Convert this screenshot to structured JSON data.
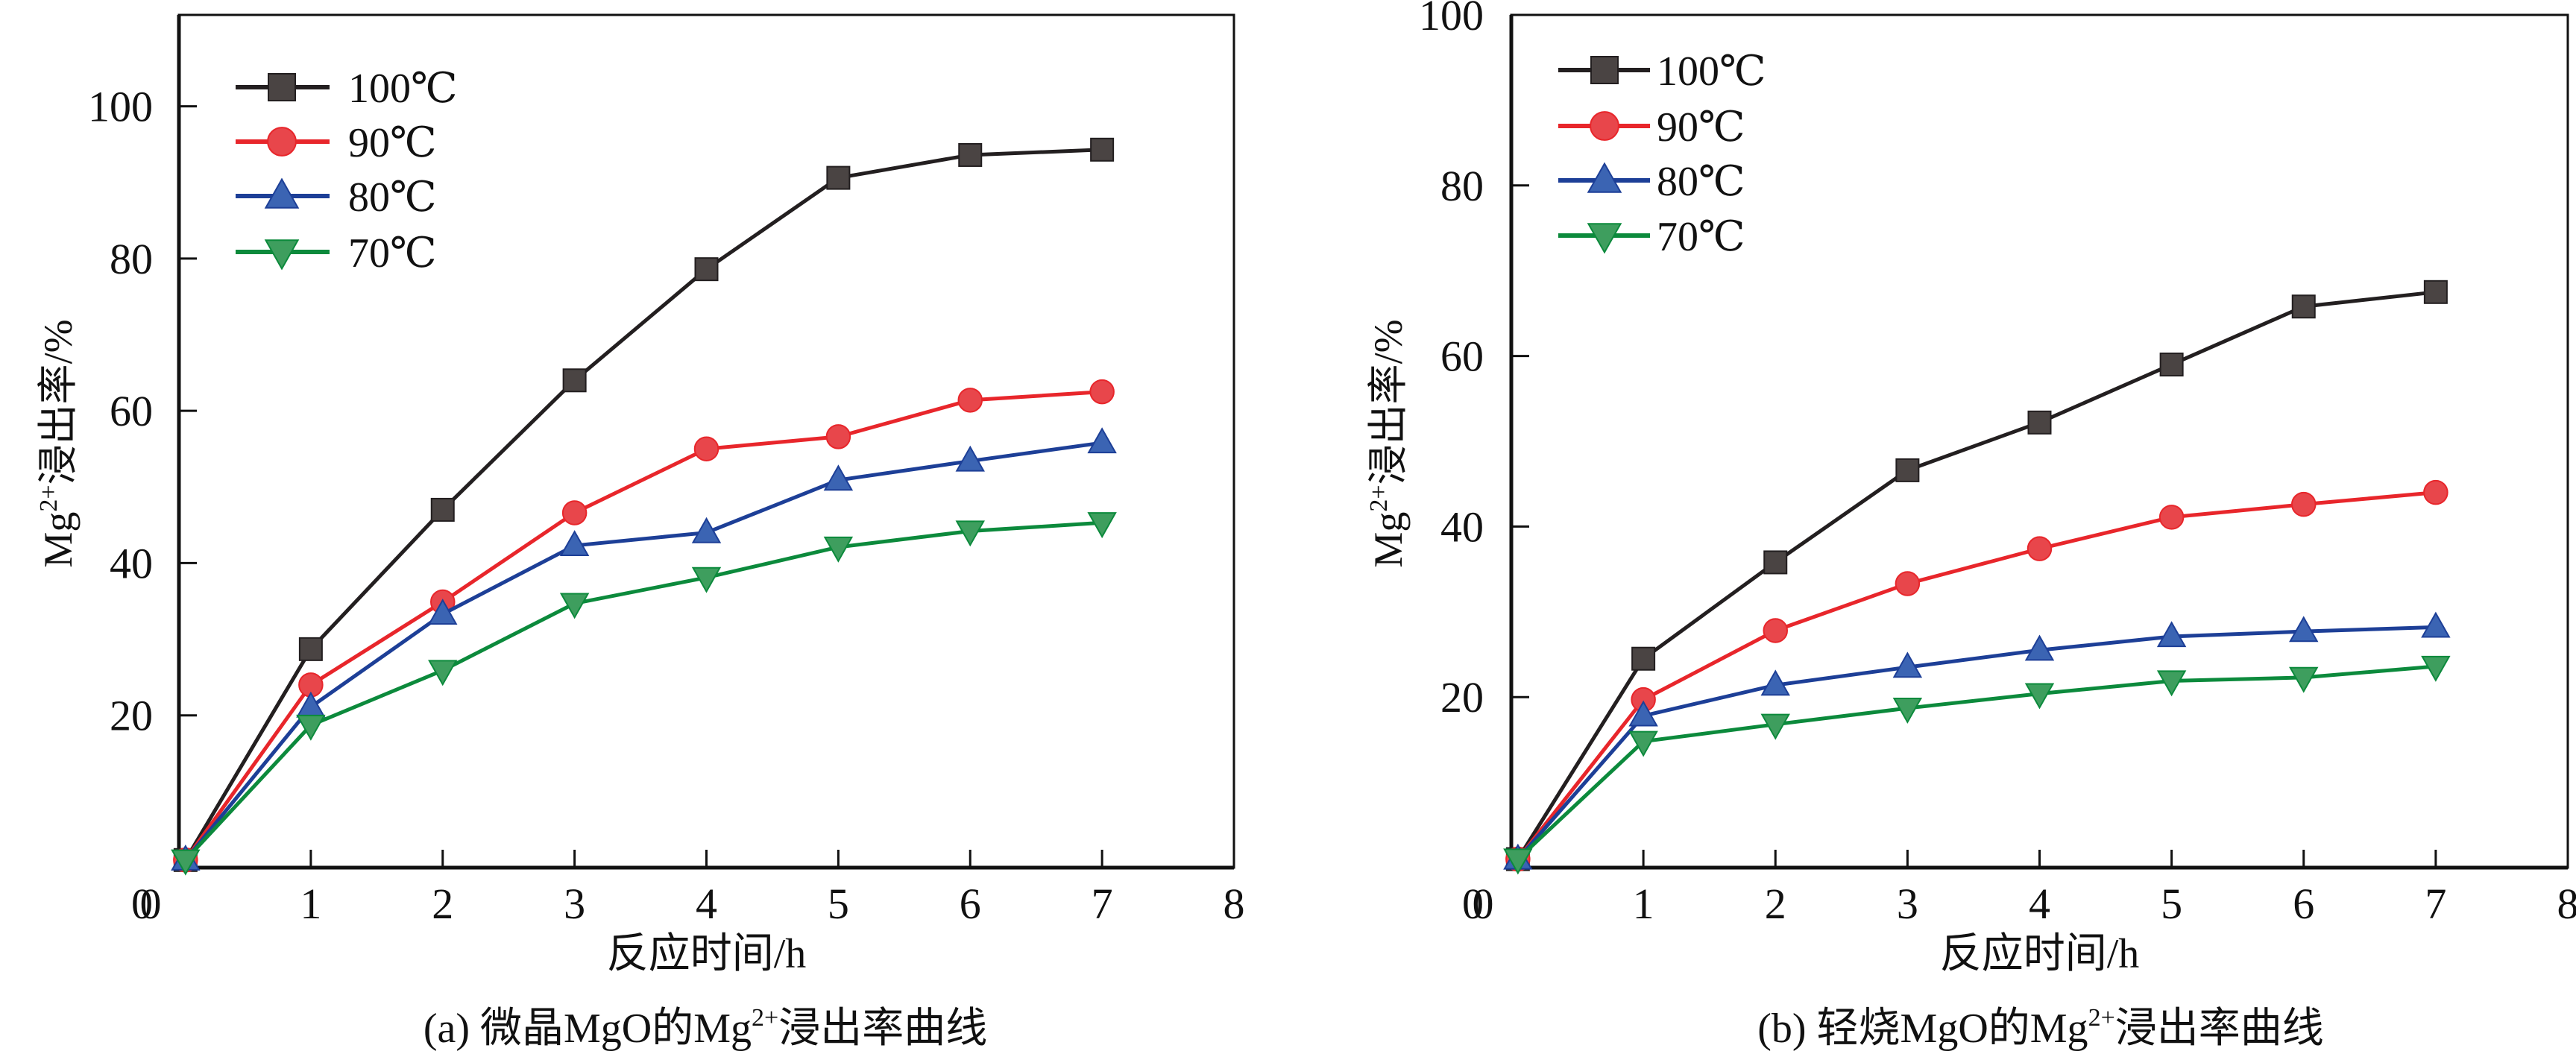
{
  "chart_data": [
    {
      "id": "a",
      "type": "line",
      "title": "",
      "caption": "(a) 微晶MgO的Mg²⁺浸出率曲线",
      "caption_parts": {
        "prefix": "(a) 微晶MgO的Mg",
        "sup": "2+",
        "suffix": "浸出率曲线"
      },
      "xlabel": "反应时间/h",
      "ylabel": "Mg²⁺浸出率/%",
      "ylabel_parts": {
        "prefix": "Mg",
        "sup": "2+",
        "suffix": "浸出率/%"
      },
      "xlim": [
        0,
        8
      ],
      "ylim": [
        0,
        112
      ],
      "xticks": [
        0,
        1,
        2,
        3,
        4,
        5,
        6,
        7,
        8
      ],
      "yticks": [
        20,
        40,
        60,
        80,
        100
      ],
      "ytick_labels_shown": [
        "0",
        "20",
        "40",
        "60",
        "80",
        "100"
      ],
      "grid": false,
      "legend_position": "top-left",
      "x": [
        0.05,
        1,
        2,
        3,
        4,
        5,
        6,
        7
      ],
      "series": [
        {
          "name": "100℃",
          "color": "#231f20",
          "fill": "#4a4443",
          "marker": "square",
          "values": [
            1,
            28.7,
            47.0,
            64.0,
            78.6,
            90.6,
            93.6,
            94.3
          ]
        },
        {
          "name": "90℃",
          "color": "#e8262b",
          "fill": "#e8464b",
          "marker": "circle",
          "values": [
            1,
            24.0,
            34.9,
            46.6,
            55.0,
            56.6,
            61.4,
            62.5
          ]
        },
        {
          "name": "80℃",
          "color": "#1d3f97",
          "fill": "#3b64b3",
          "marker": "triangle-up",
          "values": [
            1,
            21.1,
            33.3,
            42.3,
            44.0,
            50.9,
            53.4,
            55.8
          ]
        },
        {
          "name": "70℃",
          "color": "#0c8a3c",
          "fill": "#3e9e5e",
          "marker": "triangle-down",
          "values": [
            1,
            18.7,
            25.9,
            34.7,
            38.1,
            42.1,
            44.2,
            45.3
          ]
        }
      ]
    },
    {
      "id": "b",
      "type": "line",
      "title": "",
      "caption": "(b) 轻烧MgO的Mg²⁺浸出率曲线",
      "caption_parts": {
        "prefix": "(b) 轻烧MgO的Mg",
        "sup": "2+",
        "suffix": "浸出率曲线"
      },
      "xlabel": "反应时间/h",
      "ylabel": "Mg²⁺浸出率/%",
      "ylabel_parts": {
        "prefix": "Mg",
        "sup": "2+",
        "suffix": "浸出率/%"
      },
      "xlim": [
        0,
        8
      ],
      "ylim": [
        0,
        100
      ],
      "xticks": [
        0,
        1,
        2,
        3,
        4,
        5,
        6,
        7,
        8
      ],
      "yticks": [
        20,
        40,
        60,
        80
      ],
      "ytick_labels_shown": [
        "0",
        "20",
        "40",
        "60",
        "80",
        "100"
      ],
      "grid": false,
      "legend_position": "top-left",
      "x": [
        0.05,
        1,
        2,
        3,
        4,
        5,
        6,
        7
      ],
      "series": [
        {
          "name": "100℃",
          "color": "#231f20",
          "fill": "#4a4443",
          "marker": "square",
          "values": [
            1,
            24.5,
            35.8,
            46.6,
            52.2,
            59.0,
            65.8,
            67.5
          ]
        },
        {
          "name": "90℃",
          "color": "#e8262b",
          "fill": "#e8464b",
          "marker": "circle",
          "values": [
            1,
            19.7,
            27.8,
            33.3,
            37.4,
            41.1,
            42.6,
            44.0
          ]
        },
        {
          "name": "80℃",
          "color": "#1d3f97",
          "fill": "#3b64b3",
          "marker": "triangle-up",
          "values": [
            1,
            17.8,
            21.4,
            23.5,
            25.5,
            27.1,
            27.7,
            28.2
          ]
        },
        {
          "name": "70℃",
          "color": "#0c8a3c",
          "fill": "#3e9e5e",
          "marker": "triangle-down",
          "values": [
            1,
            14.8,
            16.8,
            18.7,
            20.4,
            21.9,
            22.3,
            23.6
          ]
        }
      ]
    }
  ]
}
